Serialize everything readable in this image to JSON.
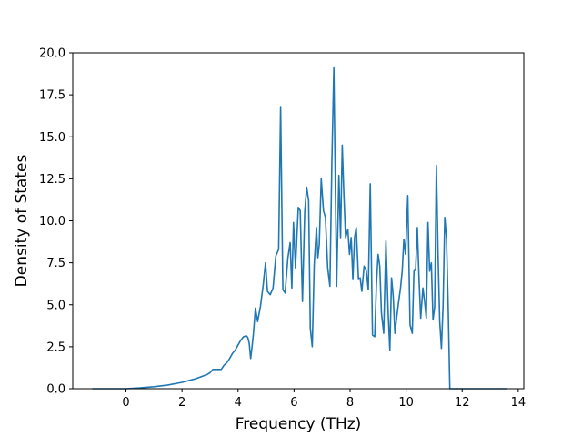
{
  "chart_data": {
    "type": "line",
    "title": "",
    "xlabel": "Frequency (THz)",
    "ylabel": "Density of States",
    "xlim": [
      -1.9,
      14.2
    ],
    "ylim": [
      0,
      20
    ],
    "xticks": [
      0,
      2,
      4,
      6,
      8,
      10,
      12,
      14
    ],
    "xtick_labels": [
      "0",
      "2",
      "4",
      "6",
      "8",
      "10",
      "12",
      "14"
    ],
    "yticks": [
      0,
      2.5,
      5,
      7.5,
      10,
      12.5,
      15,
      17.5,
      20
    ],
    "ytick_labels": [
      "0.0",
      "2.5",
      "5.0",
      "7.5",
      "10.0",
      "12.5",
      "15.0",
      "17.5",
      "20.0"
    ],
    "grid": false,
    "color": "#1f77b4",
    "series": [
      {
        "x": [
          -1.2,
          -0.6,
          0,
          0.5,
          1.0,
          1.5,
          2.0,
          2.5,
          2.9,
          3.0,
          3.1,
          3.4,
          3.5,
          3.6,
          3.7,
          3.8,
          3.9,
          4.0,
          4.1,
          4.2,
          4.3,
          4.35,
          4.4,
          4.45,
          4.5,
          4.55,
          4.62,
          4.7,
          4.8,
          4.9,
          4.98,
          5.05,
          5.15,
          5.25,
          5.35,
          5.45,
          5.52,
          5.6,
          5.68,
          5.78,
          5.86,
          5.92,
          5.98,
          6.05,
          6.1,
          6.15,
          6.22,
          6.3,
          6.38,
          6.45,
          6.52,
          6.58,
          6.65,
          6.72,
          6.8,
          6.85,
          6.9,
          6.97,
          7.05,
          7.12,
          7.2,
          7.28,
          7.35,
          7.42,
          7.52,
          7.6,
          7.66,
          7.72,
          7.78,
          7.84,
          7.92,
          7.98,
          8.04,
          8.1,
          8.16,
          8.22,
          8.3,
          8.36,
          8.42,
          8.5,
          8.58,
          8.65,
          8.72,
          8.8,
          8.88,
          8.94,
          9.0,
          9.06,
          9.12,
          9.2,
          9.28,
          9.36,
          9.42,
          9.48,
          9.54,
          9.6,
          9.66,
          9.72,
          9.8,
          9.86,
          9.92,
          9.98,
          10.06,
          10.14,
          10.22,
          10.28,
          10.34,
          10.4,
          10.46,
          10.52,
          10.6,
          10.66,
          10.72,
          10.78,
          10.84,
          10.9,
          10.96,
          11.02,
          11.08,
          11.14,
          11.2,
          11.26,
          11.32,
          11.38,
          11.44,
          11.5,
          11.56,
          11.62,
          11.68,
          11.74,
          11.8,
          11.86,
          11.92,
          12.0,
          12.06,
          12.12,
          12.18,
          12.25,
          12.35,
          12.8,
          13.6
        ],
        "y": [
          0,
          0,
          0,
          0.05,
          0.12,
          0.22,
          0.38,
          0.6,
          0.85,
          0.95,
          1.15,
          1.15,
          1.4,
          1.55,
          1.8,
          2.1,
          2.3,
          2.6,
          2.9,
          3.1,
          3.15,
          3.05,
          2.7,
          1.8,
          2.5,
          3.3,
          4.8,
          4.0,
          4.9,
          6.2,
          7.5,
          5.8,
          5.6,
          6.0,
          7.9,
          8.3,
          16.8,
          5.9,
          5.7,
          7.8,
          8.7,
          6.0,
          9.9,
          7.2,
          9.0,
          10.8,
          10.6,
          5.2,
          10.5,
          12.0,
          11.2,
          3.6,
          2.5,
          7.4,
          9.6,
          7.8,
          8.6,
          12.5,
          10.6,
          10.2,
          7.2,
          6.1,
          13.5,
          19.1,
          6.1,
          12.7,
          9.0,
          14.5,
          11.5,
          9.0,
          9.5,
          8.0,
          9.0,
          6.5,
          9.0,
          9.6,
          6.5,
          6.6,
          5.8,
          7.3,
          7.0,
          5.9,
          12.2,
          3.2,
          3.1,
          6.2,
          8.0,
          7.3,
          4.5,
          3.3,
          8.8,
          4.5,
          2.3,
          6.6,
          5.5,
          3.3,
          4.2,
          5.0,
          6.0,
          7.0,
          8.9,
          8.0,
          11.5,
          3.8,
          3.3,
          7.0,
          7.1,
          9.6,
          6.6,
          4.2,
          6.0,
          5.2,
          4.2,
          9.9,
          7.0,
          7.5,
          4.1,
          4.9,
          13.3,
          8.0,
          4.0,
          2.4,
          5.0,
          10.2,
          9.0,
          5.0,
          0,
          0,
          0,
          0,
          0,
          0,
          0,
          0,
          0,
          0,
          0,
          0,
          0,
          0,
          0
        ]
      }
    ]
  }
}
